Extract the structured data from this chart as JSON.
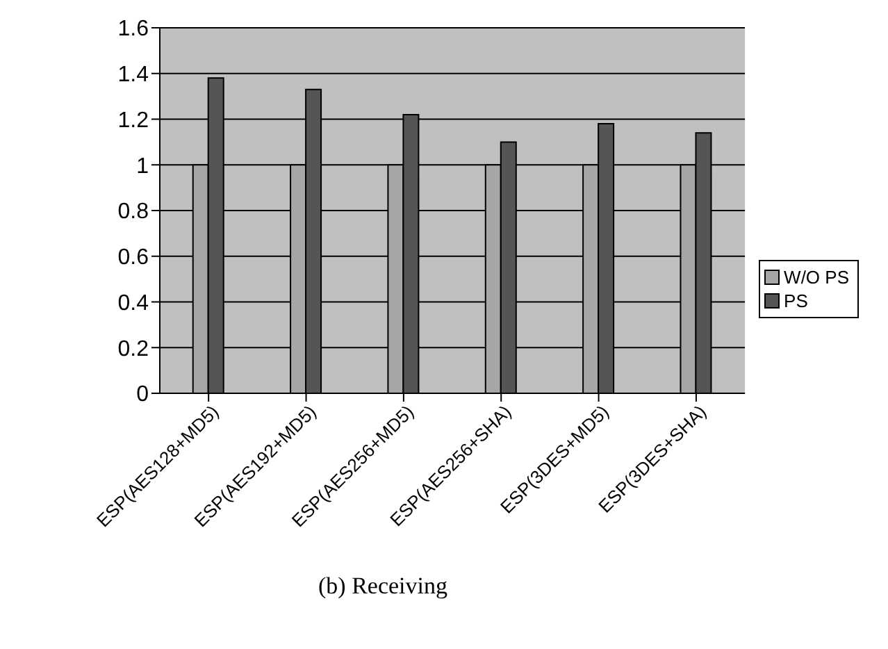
{
  "chart_data": {
    "type": "bar",
    "title": "(b) Receiving",
    "categories": [
      "ESP(AES128+MD5)",
      "ESP(AES192+MD5)",
      "ESP(AES256+MD5)",
      "ESP(AES256+SHA)",
      "ESP(3DES+MD5)",
      "ESP(3DES+SHA)"
    ],
    "series": [
      {
        "name": "W/O PS",
        "color": "#a6a6a6",
        "values": [
          1,
          1,
          1,
          1,
          1,
          1
        ]
      },
      {
        "name": "PS",
        "color": "#555555",
        "values": [
          1.38,
          1.33,
          1.22,
          1.1,
          1.18,
          1.14
        ]
      }
    ],
    "ylim": [
      0,
      1.6
    ],
    "yticks": [
      0,
      0.2,
      0.4,
      0.6,
      0.8,
      1,
      1.2,
      1.4,
      1.6
    ],
    "grid": "y",
    "legend": "right"
  }
}
